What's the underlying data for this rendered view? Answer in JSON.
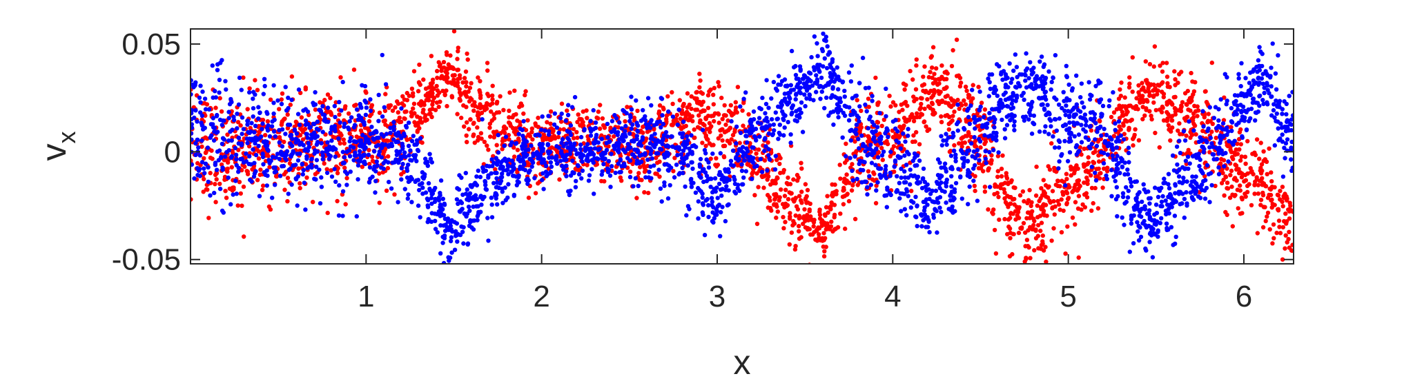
{
  "chart_data": {
    "type": "scatter",
    "xlabel": "x",
    "ylabel_main": "v",
    "ylabel_sub": "x",
    "xlim": [
      0,
      6.2832
    ],
    "ylim": [
      -0.052,
      0.057
    ],
    "xticks": [
      1,
      2,
      3,
      4,
      5,
      6
    ],
    "xtick_labels": [
      "1",
      "2",
      "3",
      "4",
      "5",
      "6"
    ],
    "yticks": [
      -0.05,
      0,
      0.05
    ],
    "ytick_labels": [
      "-0.05",
      "0",
      "0.05"
    ],
    "grid": false,
    "series": [
      {
        "color": "#ff0000",
        "points_per_anchor": 120,
        "anchors": [
          [
            0.0,
            0.0,
            0.016
          ],
          [
            0.3,
            0.002,
            0.014
          ],
          [
            0.6,
            0.003,
            0.013
          ],
          [
            0.9,
            0.004,
            0.013
          ],
          [
            1.2,
            0.008,
            0.012
          ],
          [
            1.4,
            0.03,
            0.008
          ],
          [
            1.48,
            0.038,
            0.007
          ],
          [
            1.6,
            0.02,
            0.012
          ],
          [
            1.75,
            0.01,
            0.013
          ],
          [
            2.0,
            0.003,
            0.01
          ],
          [
            2.3,
            0.004,
            0.01
          ],
          [
            2.6,
            0.0,
            0.01
          ],
          [
            2.9,
            0.018,
            0.01
          ],
          [
            3.1,
            0.008,
            0.012
          ],
          [
            3.3,
            -0.01,
            0.012
          ],
          [
            3.5,
            -0.03,
            0.01
          ],
          [
            3.6,
            -0.04,
            0.008
          ],
          [
            3.8,
            0.0,
            0.015
          ],
          [
            4.0,
            0.005,
            0.015
          ],
          [
            4.25,
            0.028,
            0.01
          ],
          [
            4.45,
            0.01,
            0.015
          ],
          [
            4.65,
            -0.02,
            0.012
          ],
          [
            4.75,
            -0.035,
            0.01
          ],
          [
            5.0,
            -0.015,
            0.014
          ],
          [
            5.25,
            0.005,
            0.012
          ],
          [
            5.45,
            0.03,
            0.01
          ],
          [
            5.7,
            0.015,
            0.012
          ],
          [
            5.9,
            -0.005,
            0.013
          ],
          [
            6.1,
            -0.015,
            0.013
          ],
          [
            6.28,
            -0.035,
            0.01
          ]
        ]
      },
      {
        "color": "#0000ff",
        "points_per_anchor": 120,
        "anchors": [
          [
            0.0,
            0.01,
            0.018
          ],
          [
            0.3,
            0.005,
            0.016
          ],
          [
            0.6,
            0.002,
            0.014
          ],
          [
            0.9,
            0.005,
            0.013
          ],
          [
            1.2,
            0.002,
            0.013
          ],
          [
            1.38,
            -0.02,
            0.01
          ],
          [
            1.48,
            -0.04,
            0.008
          ],
          [
            1.6,
            -0.02,
            0.012
          ],
          [
            1.8,
            -0.01,
            0.01
          ],
          [
            2.0,
            0.0,
            0.01
          ],
          [
            2.3,
            0.0,
            0.01
          ],
          [
            2.6,
            0.005,
            0.01
          ],
          [
            2.85,
            -0.005,
            0.012
          ],
          [
            3.0,
            -0.02,
            0.01
          ],
          [
            3.2,
            0.005,
            0.012
          ],
          [
            3.45,
            0.025,
            0.01
          ],
          [
            3.6,
            0.04,
            0.008
          ],
          [
            3.8,
            0.01,
            0.015
          ],
          [
            4.0,
            -0.005,
            0.015
          ],
          [
            4.2,
            -0.025,
            0.01
          ],
          [
            4.4,
            0.0,
            0.015
          ],
          [
            4.6,
            0.02,
            0.012
          ],
          [
            4.75,
            0.03,
            0.01
          ],
          [
            5.0,
            0.015,
            0.013
          ],
          [
            5.2,
            0.01,
            0.012
          ],
          [
            5.35,
            -0.02,
            0.012
          ],
          [
            5.45,
            -0.035,
            0.01
          ],
          [
            5.7,
            -0.01,
            0.012
          ],
          [
            5.9,
            0.01,
            0.012
          ],
          [
            6.1,
            0.035,
            0.01
          ],
          [
            6.28,
            0.01,
            0.014
          ]
        ]
      }
    ]
  }
}
